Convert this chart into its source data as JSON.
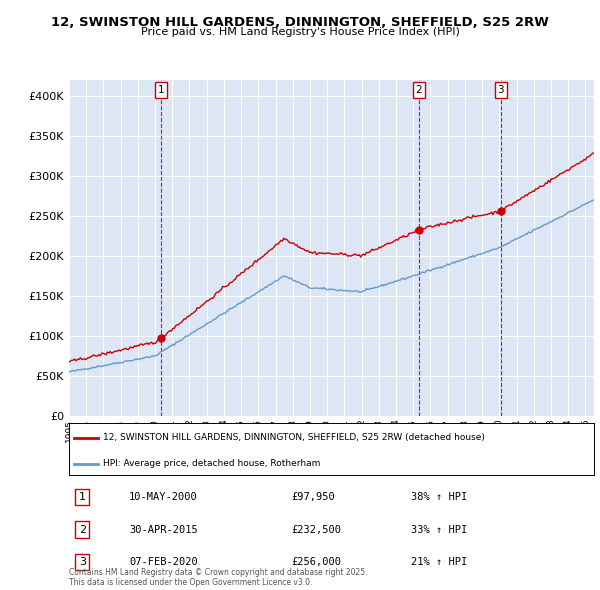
{
  "title1": "12, SWINSTON HILL GARDENS, DINNINGTON, SHEFFIELD, S25 2RW",
  "title2": "Price paid vs. HM Land Registry's House Price Index (HPI)",
  "plot_bg_color": "#dce6f5",
  "sale_prices": [
    97950,
    232500,
    256000
  ],
  "sale_year_vals": [
    2000.36,
    2015.33,
    2020.09
  ],
  "sale_labels": [
    "1",
    "2",
    "3"
  ],
  "legend_label_red": "12, SWINSTON HILL GARDENS, DINNINGTON, SHEFFIELD, S25 2RW (detached house)",
  "legend_label_blue": "HPI: Average price, detached house, Rotherham",
  "table_rows": [
    [
      "1",
      "10-MAY-2000",
      "£97,950",
      "38% ↑ HPI"
    ],
    [
      "2",
      "30-APR-2015",
      "£232,500",
      "33% ↑ HPI"
    ],
    [
      "3",
      "07-FEB-2020",
      "£256,000",
      "21% ↑ HPI"
    ]
  ],
  "footnote": "Contains HM Land Registry data © Crown copyright and database right 2025.\nThis data is licensed under the Open Government Licence v3.0.",
  "ylim": [
    0,
    420000
  ],
  "yticks": [
    0,
    50000,
    100000,
    150000,
    200000,
    250000,
    300000,
    350000,
    400000
  ],
  "red_line_color": "#cc0000",
  "blue_line_color": "#6699cc",
  "xlim_left": 1995,
  "xlim_right": 2025.5
}
